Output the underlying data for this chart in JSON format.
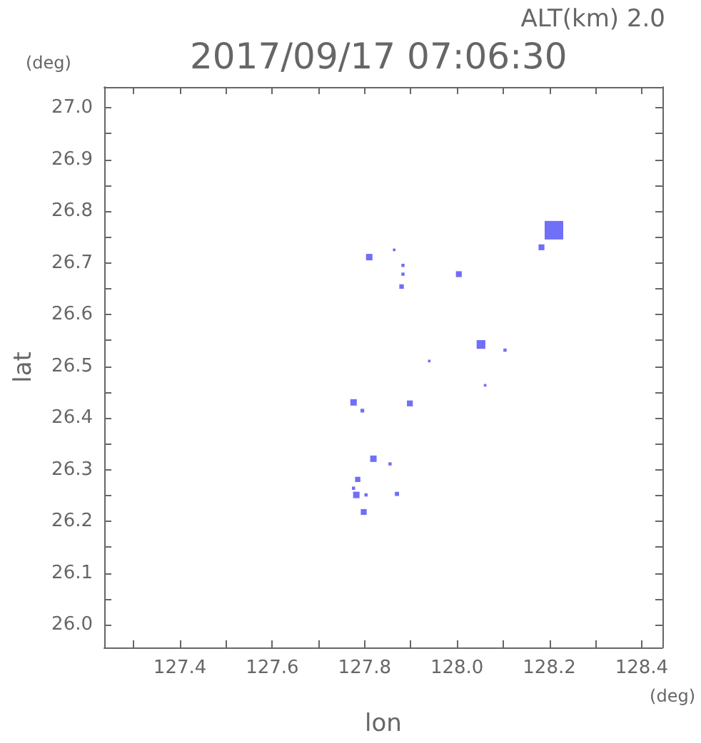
{
  "chart_data": {
    "type": "bubble",
    "title": "2017/09/17 07:06:30",
    "subtitle": "ALT(km) 2.0",
    "xlabel": "lon",
    "ylabel": "lat",
    "annotations": [
      "(deg)",
      "(deg)"
    ],
    "xlim": [
      127.236,
      128.445
    ],
    "ylim": [
      25.956,
      27.04
    ],
    "xticks": [
      {
        "value": 127.3,
        "label": null
      },
      {
        "value": 127.4,
        "label": "127.4"
      },
      {
        "value": 127.5,
        "label": null
      },
      {
        "value": 127.6,
        "label": "127.6"
      },
      {
        "value": 127.7,
        "label": null
      },
      {
        "value": 127.8,
        "label": "127.8"
      },
      {
        "value": 127.9,
        "label": null
      },
      {
        "value": 128.0,
        "label": "128.0"
      },
      {
        "value": 128.1,
        "label": null
      },
      {
        "value": 128.2,
        "label": "128.2"
      },
      {
        "value": 128.3,
        "label": null
      },
      {
        "value": 128.4,
        "label": "128.4"
      }
    ],
    "yticks": [
      {
        "value": 26.0,
        "label": "26.0"
      },
      {
        "value": 26.05,
        "label": null
      },
      {
        "value": 26.1,
        "label": "26.1"
      },
      {
        "value": 26.15,
        "label": null
      },
      {
        "value": 26.2,
        "label": "26.2"
      },
      {
        "value": 26.25,
        "label": null
      },
      {
        "value": 26.3,
        "label": "26.3"
      },
      {
        "value": 26.35,
        "label": null
      },
      {
        "value": 26.4,
        "label": "26.4"
      },
      {
        "value": 26.45,
        "label": null
      },
      {
        "value": 26.5,
        "label": "26.5"
      },
      {
        "value": 26.55,
        "label": null
      },
      {
        "value": 26.6,
        "label": "26.6"
      },
      {
        "value": 26.65,
        "label": null
      },
      {
        "value": 26.7,
        "label": "26.7"
      },
      {
        "value": 26.75,
        "label": null
      },
      {
        "value": 26.8,
        "label": "26.8"
      },
      {
        "value": 26.85,
        "label": null
      },
      {
        "value": 26.9,
        "label": "26.9"
      },
      {
        "value": 26.95,
        "label": null
      },
      {
        "value": 27.0,
        "label": "27.0"
      }
    ],
    "x": [
      128.21,
      128.183,
      127.81,
      127.864,
      127.883,
      127.883,
      127.88,
      128.004,
      128.052,
      128.104,
      127.94,
      128.061,
      127.776,
      127.795,
      127.898,
      127.819,
      127.855,
      127.785,
      127.776,
      127.782,
      127.803,
      127.87,
      127.798
    ],
    "values": [
      26.763,
      26.73,
      26.711,
      26.725,
      26.695,
      26.678,
      26.654,
      26.678,
      26.542,
      26.531,
      26.51,
      26.463,
      26.43,
      26.414,
      26.428,
      26.321,
      26.311,
      26.281,
      26.264,
      26.251,
      26.251,
      26.253,
      26.218
    ],
    "sizes": [
      1,
      0.1,
      0.12,
      0.02,
      0.03,
      0.03,
      0.06,
      0.1,
      0.22,
      0.03,
      0.02,
      0.02,
      0.12,
      0.04,
      0.1,
      0.12,
      0.03,
      0.08,
      0.03,
      0.12,
      0.03,
      0.05,
      0.1
    ],
    "color": "#4b4bf5",
    "marker": "square",
    "grid": false
  }
}
